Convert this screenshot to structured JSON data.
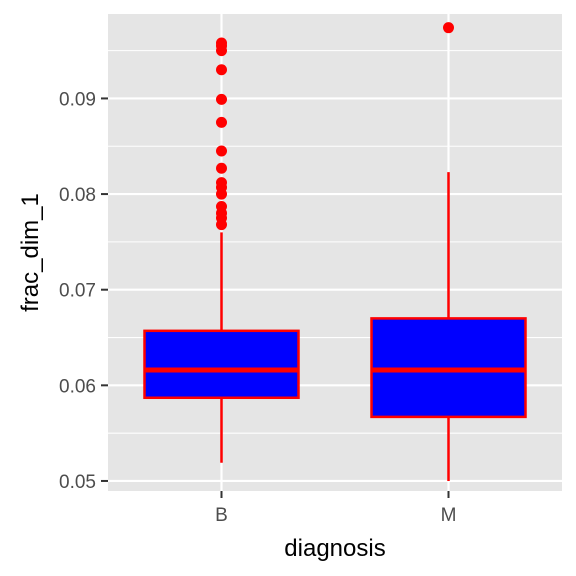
{
  "chart_data": {
    "type": "boxplot",
    "xlabel": "diagnosis",
    "ylabel": "frac_dim_1",
    "categories": [
      "B",
      "M"
    ],
    "ylim": [
      0.04895,
      0.09883
    ],
    "yticks": [
      0.05,
      0.06,
      0.07,
      0.08,
      0.09
    ],
    "ytick_labels": [
      "0.05",
      "0.06",
      "0.07",
      "0.08",
      "0.09"
    ],
    "grid": true,
    "legend": "none",
    "boxes": [
      {
        "category": "B",
        "whisker_low": 0.0519,
        "q1": 0.0587,
        "median": 0.0616,
        "q3": 0.0657,
        "whisker_high": 0.076,
        "outliers": [
          0.0958,
          0.0955,
          0.095,
          0.093,
          0.0899,
          0.0875,
          0.0845,
          0.0827,
          0.0812,
          0.0807,
          0.08,
          0.0787,
          0.078,
          0.0775,
          0.0768
        ]
      },
      {
        "category": "M",
        "whisker_low": 0.05,
        "q1": 0.0567,
        "median": 0.0616,
        "q3": 0.067,
        "whisker_high": 0.0823,
        "outliers": [
          0.0974
        ]
      }
    ],
    "colors": {
      "panel": "#e5e5e5",
      "grid": "#ffffff",
      "box_fill": "#0000ff",
      "box_line": "#ff0000",
      "outlier": "#ff0000"
    }
  }
}
